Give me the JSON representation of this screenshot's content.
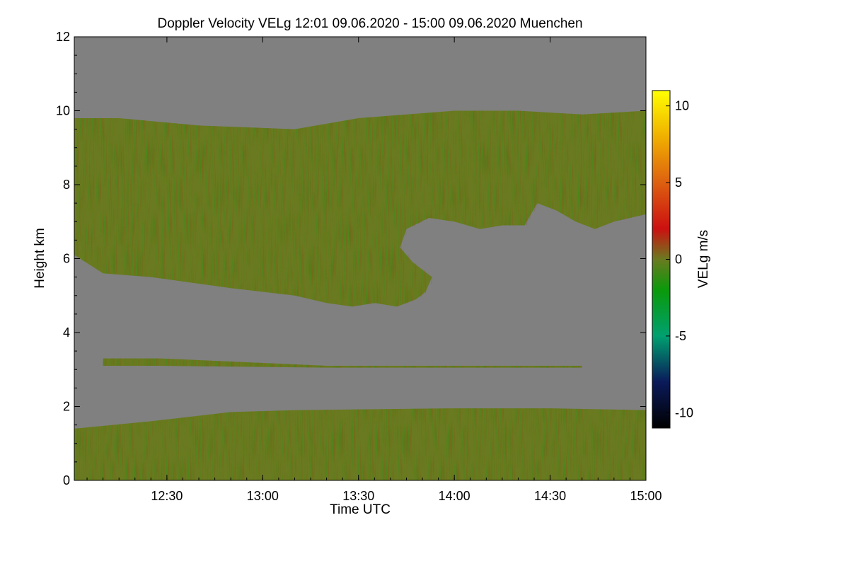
{
  "chart_data": {
    "type": "heatmap",
    "title": "Doppler Velocity VELg   12:01 09.06.2020 - 15:00 09.06.2020 Muenchen",
    "xlabel": "Time UTC",
    "ylabel": "Height km",
    "x_range_minutes": [
      721,
      900
    ],
    "xlim": [
      "12:01",
      "15:00"
    ],
    "ylim": [
      0,
      12
    ],
    "x_ticks": [
      {
        "label": "12:30",
        "minutes": 750
      },
      {
        "label": "13:00",
        "minutes": 780
      },
      {
        "label": "13:30",
        "minutes": 810
      },
      {
        "label": "14:00",
        "minutes": 840
      },
      {
        "label": "14:30",
        "minutes": 870
      },
      {
        "label": "15:00",
        "minutes": 900
      }
    ],
    "y_ticks": [
      0,
      2,
      4,
      6,
      8,
      10,
      12
    ],
    "colorbar": {
      "label": "VELg m/s",
      "range": [
        -11,
        11
      ],
      "ticks": [
        -10,
        -5,
        0,
        5,
        10
      ],
      "colors": [
        {
          "value": -11,
          "color": "#000000"
        },
        {
          "value": -8,
          "color": "#0a1a5a"
        },
        {
          "value": -5,
          "color": "#00a070"
        },
        {
          "value": -2,
          "color": "#0a9a0a"
        },
        {
          "value": 0,
          "color": "#6a7a20"
        },
        {
          "value": 2,
          "color": "#cc1010"
        },
        {
          "value": 5,
          "color": "#dd6010"
        },
        {
          "value": 8,
          "color": "#f0b000"
        },
        {
          "value": 11,
          "color": "#ffff00"
        }
      ]
    },
    "background_color": "#808080",
    "layers": [
      {
        "name": "upper cloud",
        "velocity_mean": -0.5,
        "top_km": [
          [
            721,
            9.8
          ],
          [
            735,
            9.8
          ],
          [
            760,
            9.6
          ],
          [
            790,
            9.5
          ],
          [
            810,
            9.8
          ],
          [
            825,
            9.9
          ],
          [
            840,
            10.0
          ],
          [
            860,
            10.0
          ],
          [
            880,
            9.9
          ],
          [
            900,
            10.0
          ]
        ],
        "base_km": [
          [
            721,
            6.1
          ],
          [
            730,
            5.6
          ],
          [
            745,
            5.5
          ],
          [
            770,
            5.2
          ],
          [
            790,
            5.0
          ],
          [
            800,
            4.8
          ],
          [
            808,
            4.7
          ],
          [
            815,
            4.8
          ],
          [
            822,
            4.7
          ],
          [
            828,
            4.9
          ],
          [
            831,
            5.1
          ],
          [
            833,
            5.5
          ],
          [
            827,
            5.9
          ],
          [
            823,
            6.3
          ],
          [
            825,
            6.8
          ],
          [
            832,
            7.1
          ],
          [
            840,
            7.0
          ],
          [
            848,
            6.8
          ],
          [
            855,
            6.9
          ],
          [
            862,
            6.9
          ],
          [
            866,
            7.5
          ],
          [
            872,
            7.3
          ],
          [
            878,
            7.0
          ],
          [
            884,
            6.8
          ],
          [
            890,
            7.0
          ],
          [
            900,
            7.2
          ]
        ]
      },
      {
        "name": "thin layer 3 km",
        "velocity_mean": 0.5,
        "top_km": [
          [
            730,
            3.3
          ],
          [
            748,
            3.3
          ],
          [
            800,
            3.1
          ],
          [
            880,
            3.1
          ]
        ],
        "base_km": [
          [
            730,
            3.1
          ],
          [
            748,
            3.1
          ],
          [
            800,
            3.05
          ],
          [
            880,
            3.05
          ]
        ]
      },
      {
        "name": "boundary layer",
        "velocity_mean": -0.5,
        "top_km": [
          [
            721,
            1.4
          ],
          [
            745,
            1.6
          ],
          [
            770,
            1.85
          ],
          [
            790,
            1.9
          ],
          [
            840,
            1.95
          ],
          [
            870,
            1.95
          ],
          [
            900,
            1.9
          ]
        ],
        "base_km": [
          [
            721,
            0.0
          ],
          [
            900,
            0.0
          ]
        ]
      }
    ]
  }
}
